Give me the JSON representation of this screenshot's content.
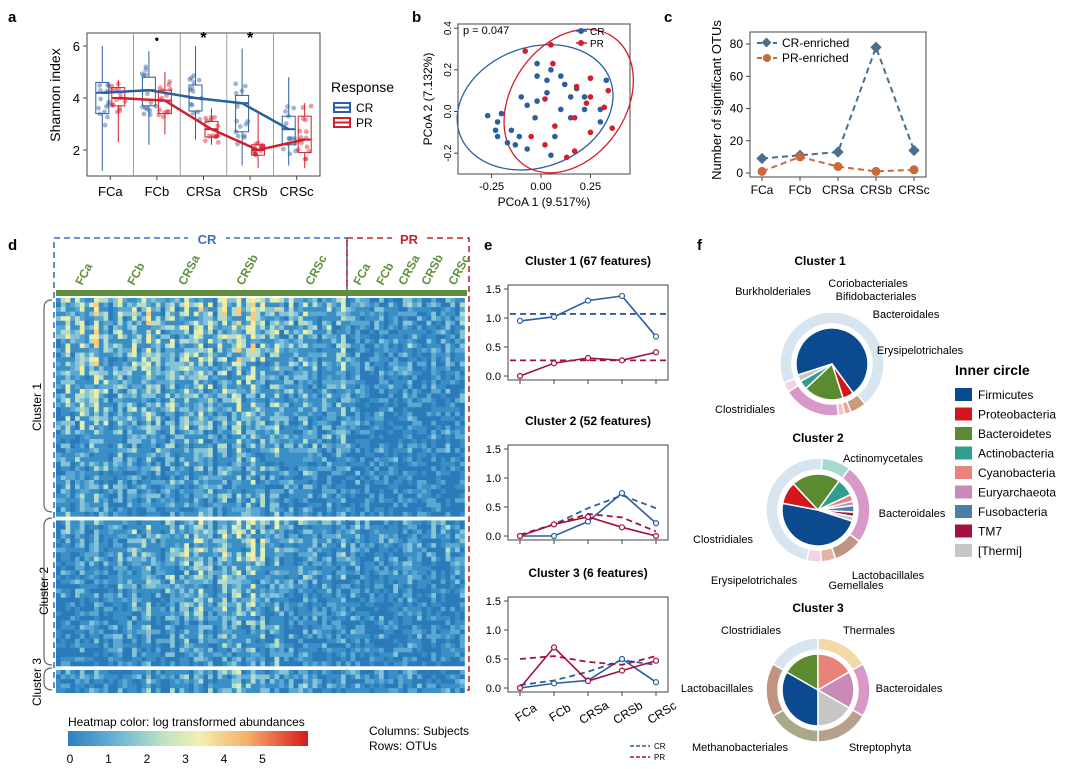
{
  "panels": {
    "a": {
      "letter": "a",
      "ylabel": "Shannon index",
      "categories": [
        "FCa",
        "FCb",
        "CRSa",
        "CRSb",
        "CRSc"
      ],
      "yticks": [
        "2",
        "4",
        "6"
      ],
      "significance": [
        "",
        "•",
        "*",
        "*",
        ""
      ],
      "legend_title": "Response",
      "series_labels": [
        "CR",
        "PR"
      ]
    },
    "b": {
      "letter": "b",
      "pvalue": "p = 0.047",
      "xlabel": "PCoA 1 (9.517%)",
      "ylabel": "PCoA 2 (7.132%)",
      "xticks": [
        "-0.25",
        "0.00",
        "0.25"
      ],
      "yticks": [
        "0.4",
        "0.2",
        "0.0",
        "-0.2"
      ],
      "legend": [
        "CR",
        "PR"
      ]
    },
    "c": {
      "letter": "c",
      "ylabel": "Number of significant OTUs",
      "yticks": [
        "0",
        "20",
        "40",
        "60",
        "80"
      ],
      "categories": [
        "FCa",
        "FCb",
        "CRSa",
        "CRSb",
        "CRSc"
      ],
      "legend": [
        "CR-enriched",
        "PR-enriched"
      ]
    },
    "d": {
      "letter": "d",
      "group_cr": "CR",
      "group_pr": "PR",
      "cr_columns": [
        "FCa",
        "FCb",
        "CRSa",
        "CRSb",
        "CRSc"
      ],
      "pr_columns": [
        "FCa",
        "FCb",
        "CRSa",
        "CRSb",
        "CRSc"
      ],
      "clusters": [
        "Cluster 1",
        "Cluster 2",
        "Cluster 3"
      ],
      "colorbar_title": "Heatmap color: log transformed abundances",
      "colorbar_ticks": [
        "0",
        "1",
        "2",
        "3",
        "4",
        "5"
      ],
      "note_columns": "Columns: Subjects",
      "note_rows": "Rows: OTUs"
    },
    "e": {
      "letter": "e",
      "titles": [
        "Cluster 1 (67 features)",
        "Cluster 2 (52 features)",
        "Cluster 3 (6 features)"
      ],
      "yticks": [
        "0.0",
        "0.5",
        "1.0",
        "1.5"
      ],
      "categories": [
        "FCa",
        "FCb",
        "CRSa",
        "CRSb",
        "CRSc"
      ],
      "legend": [
        "CR",
        "PR"
      ]
    },
    "f": {
      "letter": "f",
      "titles": [
        "Cluster 1",
        "Cluster 2",
        "Cluster 3"
      ],
      "legend_title": "Inner circle",
      "phyla": [
        "Firmicutes",
        "Proteobacteria",
        "Bacteroidetes",
        "Actinobacteria",
        "Cyanobacteria",
        "Euryarchaeota",
        "Fusobacteria",
        "TM7",
        "[Thermi]"
      ],
      "cluster1_labels": [
        "Coriobacteriales",
        "Burkholderiales",
        "Bifidobacteriales",
        "Bacteroidales",
        "Erysipelotrichales",
        "Clostridiales"
      ],
      "cluster2_labels": [
        "Actinomycetales",
        "Bacteroidales",
        "Clostridiales",
        "Lactobacillales",
        "Erysipelotrichales",
        "Gemellales"
      ],
      "cluster3_labels": [
        "Clostridiales",
        "Thermales",
        "Bacteroidales",
        "Lactobacillales",
        "Streptophyta",
        "Methanobacteriales"
      ]
    }
  },
  "colors": {
    "cr": "#2b5f9e",
    "pr": "#d21f2b",
    "cr_line": "#4a6f8c",
    "pr_line": "#c96a3c",
    "cr_box_dash": "#3f6fb8",
    "pr_box_dash": "#c0262c",
    "heat_bar": "#5f8f3c",
    "phyla": [
      "#0b4a8f",
      "#d4161c",
      "#5c8a2e",
      "#2f9e8f",
      "#e9837a",
      "#c98ab8",
      "#4b7fa8",
      "#a3113e",
      "#c6c6c6"
    ]
  },
  "chart_data": [
    {
      "panel": "a",
      "type": "box",
      "categories": [
        "FCa",
        "FCb",
        "CRSa",
        "CRSb",
        "CRSc"
      ],
      "ylabel": "Shannon index",
      "ylim": [
        1,
        6.5
      ],
      "series": [
        {
          "name": "CR",
          "median": [
            4.2,
            4.3,
            4.0,
            3.8,
            2.8
          ],
          "q1": [
            3.4,
            3.7,
            3.5,
            2.7,
            2.2
          ],
          "q3": [
            4.6,
            4.8,
            4.5,
            4.1,
            3.3
          ],
          "min": [
            1.2,
            2.2,
            2.4,
            1.4,
            1.4
          ],
          "max": [
            6.0,
            5.8,
            6.0,
            5.9,
            4.8
          ]
        },
        {
          "name": "PR",
          "median": [
            4.0,
            3.9,
            2.8,
            2.0,
            2.4
          ],
          "q1": [
            3.7,
            3.4,
            2.5,
            1.8,
            1.9
          ],
          "q3": [
            4.4,
            4.3,
            3.1,
            2.2,
            3.3
          ],
          "min": [
            2.3,
            2.6,
            2.2,
            1.3,
            1.3
          ],
          "max": [
            4.7,
            5.0,
            3.6,
            3.4,
            3.8
          ]
        }
      ]
    },
    {
      "panel": "b",
      "type": "scatter",
      "xlabel": "PCoA 1 (9.517%)",
      "ylabel": "PCoA 2 (7.132%)",
      "xlim": [
        -0.42,
        0.45
      ],
      "ylim": [
        -0.3,
        0.42
      ],
      "series": [
        {
          "name": "CR",
          "points": [
            [
              -0.02,
              0.23
            ],
            [
              0.05,
              0.2
            ],
            [
              -0.02,
              0.17
            ],
            [
              0.03,
              0.15
            ],
            [
              0.1,
              0.17
            ],
            [
              0.12,
              0.13
            ],
            [
              0.25,
              0.16
            ],
            [
              0.33,
              0.15
            ],
            [
              0.03,
              0.09
            ],
            [
              0.15,
              0.07
            ],
            [
              0.22,
              0.07
            ],
            [
              -0.02,
              0.05
            ],
            [
              -0.1,
              0.07
            ],
            [
              -0.07,
              0.03
            ],
            [
              0.1,
              0.01
            ],
            [
              0.22,
              0.01
            ],
            [
              0.3,
              0.01
            ],
            [
              -0.27,
              -0.02
            ],
            [
              -0.2,
              -0.01
            ],
            [
              -0.03,
              -0.03
            ],
            [
              0.15,
              -0.03
            ],
            [
              0.3,
              -0.05
            ],
            [
              -0.22,
              -0.05
            ],
            [
              -0.23,
              -0.09
            ],
            [
              -0.15,
              -0.09
            ],
            [
              -0.22,
              -0.12
            ],
            [
              -0.11,
              -0.12
            ],
            [
              -0.17,
              -0.15
            ],
            [
              -0.13,
              -0.16
            ],
            [
              0.07,
              -0.12
            ],
            [
              -0.07,
              -0.18
            ],
            [
              0.05,
              -0.21
            ],
            [
              0.18,
              0.11
            ]
          ]
        },
        {
          "name": "PR",
          "points": [
            [
              0.05,
              0.32
            ],
            [
              -0.08,
              0.29
            ],
            [
              0.06,
              0.23
            ],
            [
              0.25,
              0.16
            ],
            [
              0.18,
              0.12
            ],
            [
              0.34,
              0.1
            ],
            [
              0.25,
              0.07
            ],
            [
              0.02,
              0.06
            ],
            [
              0.23,
              0.04
            ],
            [
              0.32,
              0.02
            ],
            [
              0.17,
              -0.03
            ],
            [
              0.07,
              -0.07
            ],
            [
              0.25,
              -0.1
            ],
            [
              -0.05,
              -0.12
            ],
            [
              0.02,
              -0.16
            ],
            [
              0.17,
              -0.19
            ],
            [
              0.13,
              -0.22
            ],
            [
              0.36,
              -0.08
            ]
          ]
        }
      ]
    },
    {
      "panel": "c",
      "type": "line",
      "categories": [
        "FCa",
        "FCb",
        "CRSa",
        "CRSb",
        "CRSc"
      ],
      "ylabel": "Number of significant OTUs",
      "ylim": [
        0,
        85
      ],
      "series": [
        {
          "name": "CR-enriched",
          "values": [
            9,
            11,
            13,
            78,
            14
          ]
        },
        {
          "name": "PR-enriched",
          "values": [
            1,
            10,
            4,
            1,
            2
          ]
        }
      ]
    },
    {
      "panel": "e1",
      "type": "line",
      "title": "Cluster 1 (67 features)",
      "categories": [
        "FCa",
        "FCb",
        "CRSa",
        "CRSb",
        "CRSc"
      ],
      "ylim": [
        0,
        1.5
      ],
      "series": [
        {
          "name": "CR",
          "values": [
            0.95,
            1.02,
            1.3,
            1.38,
            0.68
          ],
          "mean": 1.07
        },
        {
          "name": "PR",
          "values": [
            0.0,
            0.22,
            0.31,
            0.27,
            0.41
          ],
          "mean": 0.27
        }
      ]
    },
    {
      "panel": "e2",
      "type": "line",
      "title": "Cluster 2 (52 features)",
      "categories": [
        "FCa",
        "FCb",
        "CRSa",
        "CRSb",
        "CRSc"
      ],
      "ylim": [
        0,
        1.5
      ],
      "series": [
        {
          "name": "CR",
          "values": [
            0.0,
            0.0,
            0.25,
            0.74,
            0.22
          ],
          "fit": [
            0.02,
            0.2,
            0.48,
            0.7,
            0.48
          ]
        },
        {
          "name": "PR",
          "values": [
            0.0,
            0.2,
            0.33,
            0.15,
            0.0
          ],
          "fit": [
            0.02,
            0.2,
            0.38,
            0.32,
            0.08
          ]
        }
      ]
    },
    {
      "panel": "e3",
      "type": "line",
      "title": "Cluster 3 (6 features)",
      "categories": [
        "FCa",
        "FCb",
        "CRSa",
        "CRSb",
        "CRSc"
      ],
      "ylim": [
        0,
        1.5
      ],
      "series": [
        {
          "name": "CR",
          "values": [
            0.0,
            0.08,
            0.13,
            0.5,
            0.1
          ],
          "fit": [
            0.05,
            0.13,
            0.28,
            0.48,
            0.4
          ]
        },
        {
          "name": "PR",
          "values": [
            0.0,
            0.7,
            0.12,
            0.3,
            0.47
          ],
          "fit": [
            0.5,
            0.55,
            0.45,
            0.4,
            0.55
          ]
        }
      ]
    },
    {
      "panel": "f1",
      "type": "pie",
      "title": "Cluster 1",
      "inner": {
        "labels": [
          "Firmicutes",
          "Proteobacteria",
          "Bacteroidetes",
          "Actinobacteria",
          "Cyanobacteria",
          "Euryarchaeota",
          "Fusobacteria",
          "TM7",
          "[Thermi]"
        ],
        "values": [
          70,
          5,
          18,
          4,
          0,
          0,
          0,
          0,
          3
        ]
      },
      "outer": {
        "labels": [
          "Clostridiales",
          "Burkholderiales",
          "Coriobacteriales",
          "Bifidobacteriales",
          "Bacteroidales",
          "Erysipelotrichales"
        ],
        "values": [
          70,
          5,
          2,
          2,
          18,
          3
        ]
      }
    },
    {
      "panel": "f2",
      "type": "pie",
      "title": "Cluster 2",
      "inner": {
        "labels": [
          "Firmicutes",
          "Proteobacteria",
          "Bacteroidetes",
          "Actinobacteria",
          "Cyanobacteria",
          "Euryarchaeota",
          "Fusobacteria",
          "TM7",
          "[Thermi]"
        ],
        "values": [
          48,
          10,
          22,
          8,
          3,
          2,
          3,
          2,
          2
        ]
      },
      "outer": {
        "labels": [
          "Actinomycetales",
          "Bacteroidales",
          "Lactobacillales",
          "Gemellales",
          "Erysipelotrichales",
          "Clostridiales"
        ],
        "values": [
          8,
          22,
          8,
          4,
          4,
          42
        ]
      }
    },
    {
      "panel": "f3",
      "type": "pie",
      "title": "Cluster 3",
      "inner": {
        "labels": [
          "Firmicutes",
          "Proteobacteria",
          "Bacteroidetes",
          "Actinobacteria",
          "Cyanobacteria",
          "Euryarchaeota",
          "Fusobacteria",
          "TM7",
          "[Thermi]"
        ],
        "values": [
          33.3,
          0,
          16.7,
          0,
          16.7,
          16.7,
          0,
          0,
          16.7
        ]
      },
      "outer": {
        "labels": [
          "Thermales",
          "Bacteroidales",
          "Streptophyta",
          "Methanobacteriales",
          "Lactobacillales",
          "Clostridiales"
        ],
        "values": [
          16.7,
          16.7,
          16.7,
          16.7,
          16.7,
          16.7
        ]
      }
    }
  ]
}
